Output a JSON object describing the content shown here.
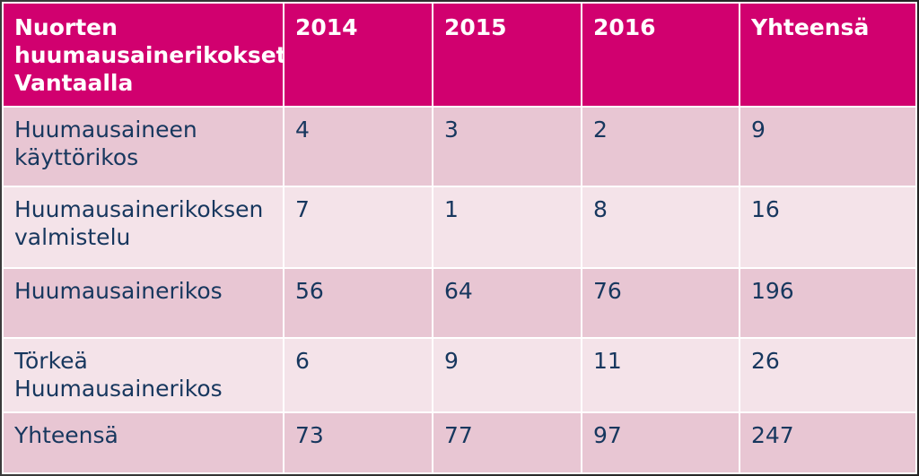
{
  "table": {
    "headers": [
      "Nuorten huumausainerikokset Vantaalla",
      "2014",
      "2015",
      "2016",
      "Yhteensä"
    ],
    "rows": [
      [
        "Huumausaineen käyttörikos",
        "4",
        "3",
        "2",
        "9"
      ],
      [
        "Huumausainerikoksen valmistelu",
        "7",
        "1",
        "8",
        "16"
      ],
      [
        "Huumausainerikos",
        "56",
        "64",
        "76",
        "196"
      ],
      [
        "Törkeä Huumausainerikos",
        "6",
        "9",
        "11",
        "26"
      ],
      [
        "Yhteensä",
        "73",
        "77",
        "97",
        "247"
      ]
    ]
  },
  "colors": {
    "header_bg": "#d1006f",
    "row_dark": "#e8c6d3",
    "row_light": "#f4e3e9",
    "text": "#17375e"
  }
}
